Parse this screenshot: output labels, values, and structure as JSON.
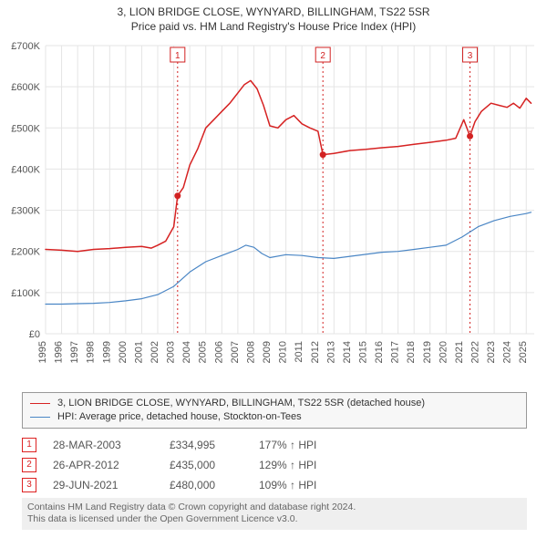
{
  "title_line1": "3, LION BRIDGE CLOSE, WYNYARD, BILLINGHAM, TS22 5SR",
  "title_line2": "Price paid vs. HM Land Registry's House Price Index (HPI)",
  "chart": {
    "type": "line",
    "background_color": "#ffffff",
    "grid_color": "#e5e5e5",
    "axis_color": "#e5e5e5",
    "text_color": "#555555",
    "font_size": 11,
    "x": {
      "min": 1995,
      "max": 2025.5,
      "ticks": [
        1995,
        1996,
        1997,
        1998,
        1999,
        2000,
        2001,
        2002,
        2003,
        2004,
        2005,
        2006,
        2007,
        2008,
        2009,
        2010,
        2011,
        2012,
        2013,
        2014,
        2015,
        2016,
        2017,
        2018,
        2019,
        2020,
        2021,
        2022,
        2023,
        2024,
        2025
      ],
      "tick_rotation": -90
    },
    "y": {
      "min": 0,
      "max": 700000,
      "ticks": [
        0,
        100000,
        200000,
        300000,
        400000,
        500000,
        600000,
        700000
      ],
      "tick_labels": [
        "£0",
        "£100K",
        "£200K",
        "£300K",
        "£400K",
        "£500K",
        "£600K",
        "£700K"
      ]
    },
    "series": [
      {
        "name": "3, LION BRIDGE CLOSE, WYNYARD, BILLINGHAM, TS22 5SR (detached house)",
        "color": "#d62222",
        "line_width": 1.5,
        "data": [
          [
            1995.0,
            205000
          ],
          [
            1996.0,
            203000
          ],
          [
            1997.0,
            200000
          ],
          [
            1998.0,
            205000
          ],
          [
            1999.0,
            207000
          ],
          [
            2000.0,
            210000
          ],
          [
            2001.0,
            212000
          ],
          [
            2001.6,
            208000
          ],
          [
            2002.0,
            215000
          ],
          [
            2002.5,
            225000
          ],
          [
            2003.0,
            260000
          ],
          [
            2003.24,
            334995
          ],
          [
            2003.6,
            355000
          ],
          [
            2004.0,
            410000
          ],
          [
            2004.5,
            450000
          ],
          [
            2005.0,
            500000
          ],
          [
            2005.5,
            520000
          ],
          [
            2006.0,
            540000
          ],
          [
            2006.5,
            560000
          ],
          [
            2007.0,
            585000
          ],
          [
            2007.4,
            605000
          ],
          [
            2007.8,
            615000
          ],
          [
            2008.2,
            595000
          ],
          [
            2008.6,
            555000
          ],
          [
            2009.0,
            505000
          ],
          [
            2009.5,
            500000
          ],
          [
            2010.0,
            520000
          ],
          [
            2010.5,
            530000
          ],
          [
            2011.0,
            510000
          ],
          [
            2011.5,
            500000
          ],
          [
            2012.0,
            492000
          ],
          [
            2012.31,
            435000
          ],
          [
            2013.0,
            438000
          ],
          [
            2014.0,
            445000
          ],
          [
            2015.0,
            448000
          ],
          [
            2016.0,
            452000
          ],
          [
            2017.0,
            455000
          ],
          [
            2018.0,
            460000
          ],
          [
            2019.0,
            465000
          ],
          [
            2020.0,
            470000
          ],
          [
            2020.6,
            475000
          ],
          [
            2021.1,
            520000
          ],
          [
            2021.49,
            480000
          ],
          [
            2021.8,
            515000
          ],
          [
            2022.2,
            540000
          ],
          [
            2022.8,
            560000
          ],
          [
            2023.3,
            555000
          ],
          [
            2023.8,
            550000
          ],
          [
            2024.2,
            560000
          ],
          [
            2024.6,
            548000
          ],
          [
            2025.0,
            572000
          ],
          [
            2025.3,
            560000
          ]
        ]
      },
      {
        "name": "HPI: Average price, detached house, Stockton-on-Tees",
        "color": "#4a86c5",
        "line_width": 1.2,
        "data": [
          [
            1995.0,
            72000
          ],
          [
            1996.0,
            72000
          ],
          [
            1997.0,
            73000
          ],
          [
            1998.0,
            74000
          ],
          [
            1999.0,
            76000
          ],
          [
            2000.0,
            80000
          ],
          [
            2001.0,
            85000
          ],
          [
            2002.0,
            95000
          ],
          [
            2003.0,
            115000
          ],
          [
            2004.0,
            150000
          ],
          [
            2005.0,
            175000
          ],
          [
            2006.0,
            190000
          ],
          [
            2007.0,
            205000
          ],
          [
            2007.5,
            215000
          ],
          [
            2008.0,
            210000
          ],
          [
            2008.5,
            195000
          ],
          [
            2009.0,
            185000
          ],
          [
            2010.0,
            192000
          ],
          [
            2011.0,
            190000
          ],
          [
            2012.0,
            185000
          ],
          [
            2013.0,
            183000
          ],
          [
            2014.0,
            188000
          ],
          [
            2015.0,
            193000
          ],
          [
            2016.0,
            198000
          ],
          [
            2017.0,
            200000
          ],
          [
            2018.0,
            205000
          ],
          [
            2019.0,
            210000
          ],
          [
            2020.0,
            215000
          ],
          [
            2021.0,
            235000
          ],
          [
            2022.0,
            260000
          ],
          [
            2023.0,
            275000
          ],
          [
            2024.0,
            285000
          ],
          [
            2025.0,
            292000
          ],
          [
            2025.3,
            295000
          ]
        ]
      }
    ],
    "markers": [
      {
        "id": "1",
        "x": 2003.24,
        "y": 334995,
        "color": "#d22222"
      },
      {
        "id": "2",
        "x": 2012.31,
        "y": 435000,
        "color": "#d22222"
      },
      {
        "id": "3",
        "x": 2021.49,
        "y": 480000,
        "color": "#d22222"
      }
    ],
    "marker_line_color": "#d22222",
    "marker_line_dash": "2,3",
    "marker_box_fill": "#ffffff",
    "marker_box_stroke": "#d22222"
  },
  "legend": {
    "series1_label": "3, LION BRIDGE CLOSE, WYNYARD, BILLINGHAM, TS22 5SR (detached house)",
    "series1_color": "#d62222",
    "series2_label": "HPI: Average price, detached house, Stockton-on-Tees",
    "series2_color": "#4a86c5"
  },
  "transactions": [
    {
      "id": "1",
      "date": "28-MAR-2003",
      "price": "£334,995",
      "hpi": "177% ↑ HPI"
    },
    {
      "id": "2",
      "date": "26-APR-2012",
      "price": "£435,000",
      "hpi": "129% ↑ HPI"
    },
    {
      "id": "3",
      "date": "29-JUN-2021",
      "price": "£480,000",
      "hpi": "109% ↑ HPI"
    }
  ],
  "license_line1": "Contains HM Land Registry data © Crown copyright and database right 2024.",
  "license_line2": "This data is licensed under the Open Government Licence v3.0."
}
